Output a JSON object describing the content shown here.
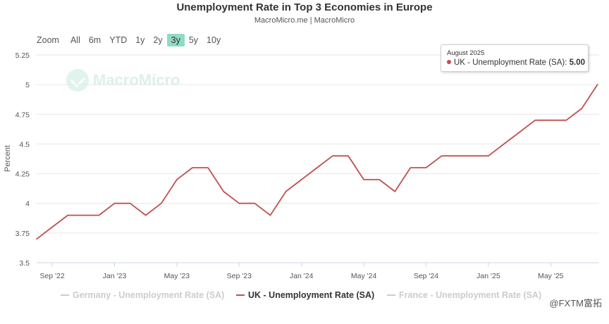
{
  "header": {
    "title": "Unemployment Rate in Top 3 Economies in Europe",
    "subtitle": "MacroMicro.me | MacroMicro"
  },
  "range_selector": {
    "zoom_label": "Zoom",
    "buttons": [
      "All",
      "6m",
      "YTD",
      "1y",
      "2y",
      "3y",
      "5y",
      "10y"
    ],
    "active": "3y"
  },
  "watermark": {
    "text": "MacroMicro"
  },
  "corner_mark": {
    "text": "@FXTM富拓"
  },
  "tooltip": {
    "date": "August 2025",
    "series": "UK - Unemployment Rate (SA)",
    "value": "5.00",
    "color": "#c0504d"
  },
  "legend": [
    {
      "label": "Germany - Unemployment Rate (SA)",
      "state": "off"
    },
    {
      "label": "UK - Unemployment Rate (SA)",
      "state": "on"
    },
    {
      "label": "France - Unemployment Rate (SA)",
      "state": "off"
    }
  ],
  "chart_data": {
    "type": "line",
    "title": "Unemployment Rate in Top 3 Economies in Europe",
    "ylabel": "Percent",
    "xlabel": "",
    "ylim": [
      3.5,
      5.25
    ],
    "yticks": [
      "3.5",
      "3.75",
      "4",
      "4.25",
      "4.5",
      "4.75",
      "5",
      "5.25"
    ],
    "xticks": [
      "Sep '22",
      "Jan '23",
      "May '23",
      "Sep '23",
      "Jan '24",
      "May '24",
      "Sep '24",
      "Jan '25",
      "May '25"
    ],
    "x_start": "Aug '22",
    "grid": true,
    "legend_position": "bottom",
    "series": [
      {
        "name": "UK - Unemployment Rate (SA)",
        "color": "#c0504d",
        "values": [
          3.7,
          3.8,
          3.9,
          3.9,
          3.9,
          4.0,
          4.0,
          3.9,
          4.0,
          4.2,
          4.3,
          4.3,
          4.1,
          4.0,
          4.0,
          3.9,
          4.1,
          4.2,
          4.3,
          4.4,
          4.4,
          4.2,
          4.2,
          4.1,
          4.3,
          4.3,
          4.4,
          4.4,
          4.4,
          4.4,
          4.5,
          4.6,
          4.7,
          4.7,
          4.7,
          4.8,
          5.0
        ]
      }
    ]
  }
}
